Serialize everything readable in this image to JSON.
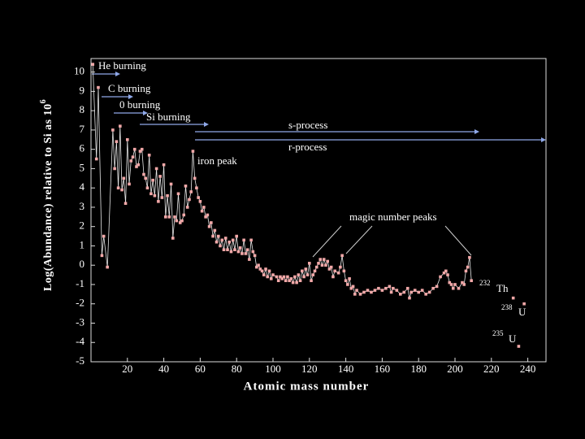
{
  "chart_data": {
    "type": "line",
    "y_label": "Log(Abundance) relative to Si as 10",
    "y_label_superscript": "6",
    "x_label": "Atomic mass number",
    "xlim": [
      0,
      250
    ],
    "ylim": [
      -5,
      10.7
    ],
    "xticks": [
      20,
      40,
      60,
      80,
      100,
      120,
      140,
      160,
      180,
      200,
      220,
      240
    ],
    "yticks": [
      -5,
      -4,
      -3,
      -2,
      -1,
      0,
      1,
      2,
      3,
      4,
      5,
      6,
      7,
      8,
      9,
      10
    ],
    "annotations": [
      "He burning",
      "C burning",
      "0 burning",
      "Si burning",
      "s-process",
      "r-process",
      "iron peak",
      "magic number peaks"
    ],
    "isotope_labels": [
      {
        "mass": "232",
        "symbol": "Th"
      },
      {
        "mass": "238",
        "symbol": "U"
      },
      {
        "mass": "235",
        "symbol": "U"
      }
    ],
    "series": [
      {
        "color": "#f2a8a8",
        "x": [
          1,
          3,
          4,
          6,
          7,
          9,
          12,
          13,
          14,
          15,
          16,
          17,
          18,
          19,
          20,
          21,
          22,
          23,
          24,
          25,
          26,
          27,
          28,
          29,
          30,
          31,
          32,
          33,
          34,
          35,
          36,
          37,
          38,
          39,
          40,
          41,
          42,
          43,
          44,
          45,
          46,
          47,
          48,
          49,
          50,
          51,
          52,
          53,
          54,
          55,
          56,
          57,
          58,
          59,
          60,
          61,
          62,
          63,
          64,
          65,
          66,
          67,
          68,
          69,
          70,
          71,
          72,
          73,
          74,
          75,
          76,
          77,
          78,
          79,
          80,
          81,
          82,
          83,
          84,
          85,
          86,
          87,
          88,
          89,
          90,
          91,
          92,
          93,
          94,
          95,
          96,
          97,
          98,
          99,
          100,
          102,
          103,
          104,
          105,
          106,
          107,
          108,
          109,
          110,
          111,
          112,
          113,
          114,
          115,
          116,
          117,
          118,
          119,
          120,
          121,
          122,
          123,
          124,
          125,
          126,
          127,
          128,
          129,
          130,
          131,
          132,
          133,
          134,
          136,
          137,
          138,
          139,
          140,
          141,
          142,
          143,
          144,
          145,
          146,
          148,
          150,
          152,
          154,
          156,
          158,
          160,
          162,
          164,
          165,
          166,
          168,
          170,
          172,
          174,
          175,
          176,
          178,
          180,
          182,
          184,
          186,
          188,
          190,
          192,
          194,
          195,
          196,
          197,
          198,
          199,
          200,
          202,
          204,
          205,
          206,
          207,
          208,
          209
        ],
        "values": [
          10.4,
          5.5,
          9.2,
          0.5,
          1.5,
          -0.1,
          7.0,
          5.0,
          6.4,
          4.0,
          7.2,
          3.9,
          4.5,
          3.2,
          6.5,
          4.2,
          5.4,
          5.6,
          6.0,
          5.1,
          5.2,
          5.9,
          6.0,
          4.7,
          4.5,
          4.0,
          5.7,
          3.7,
          4.4,
          3.6,
          5.0,
          3.3,
          4.6,
          3.5,
          5.2,
          2.5,
          3.6,
          2.5,
          4.2,
          1.4,
          2.5,
          2.3,
          3.7,
          2.2,
          2.3,
          2.6,
          4.1,
          3.0,
          3.4,
          3.8,
          5.9,
          4.5,
          4.0,
          3.5,
          3.3,
          2.8,
          3.0,
          2.5,
          2.6,
          2.0,
          2.2,
          1.5,
          1.8,
          1.2,
          1.5,
          1.0,
          1.3,
          0.8,
          1.4,
          0.8,
          1.2,
          0.7,
          1.3,
          0.8,
          1.5,
          0.7,
          0.9,
          0.6,
          1.3,
          0.6,
          0.8,
          0.3,
          1.3,
          0.7,
          0.5,
          -0.1,
          0.0,
          -0.2,
          -0.3,
          -0.5,
          -0.2,
          -0.6,
          -0.3,
          -0.7,
          -0.5,
          -0.6,
          -0.8,
          -0.6,
          -0.7,
          -0.6,
          -0.8,
          -0.6,
          -0.8,
          -0.7,
          -0.9,
          -0.6,
          -0.9,
          -0.5,
          -0.8,
          -0.3,
          -0.6,
          -0.2,
          -0.5,
          0.1,
          -0.8,
          -0.5,
          -0.3,
          -0.1,
          0.1,
          0.3,
          0.0,
          0.3,
          0.0,
          0.2,
          -0.2,
          -0.1,
          -0.6,
          -0.3,
          -0.4,
          -0.1,
          0.5,
          -0.3,
          -0.8,
          -1.0,
          -0.7,
          -1.2,
          -1.1,
          -1.5,
          -1.3,
          -1.5,
          -1.4,
          -1.3,
          -1.4,
          -1.3,
          -1.2,
          -1.3,
          -1.2,
          -1.1,
          -1.4,
          -1.2,
          -1.3,
          -1.5,
          -1.4,
          -1.2,
          -1.7,
          -1.4,
          -1.3,
          -1.4,
          -1.3,
          -1.5,
          -1.4,
          -1.2,
          -1.1,
          -0.6,
          -0.4,
          -0.3,
          -0.5,
          -0.9,
          -1.0,
          -1.2,
          -1.0,
          -1.2,
          -0.9,
          -1.0,
          -0.3,
          -0.1,
          0.4,
          -0.8
        ]
      },
      {
        "color": "#f2a8a8",
        "x": [
          232,
          238,
          235
        ],
        "values": [
          -1.7,
          -2.0,
          -4.2
        ]
      }
    ]
  }
}
